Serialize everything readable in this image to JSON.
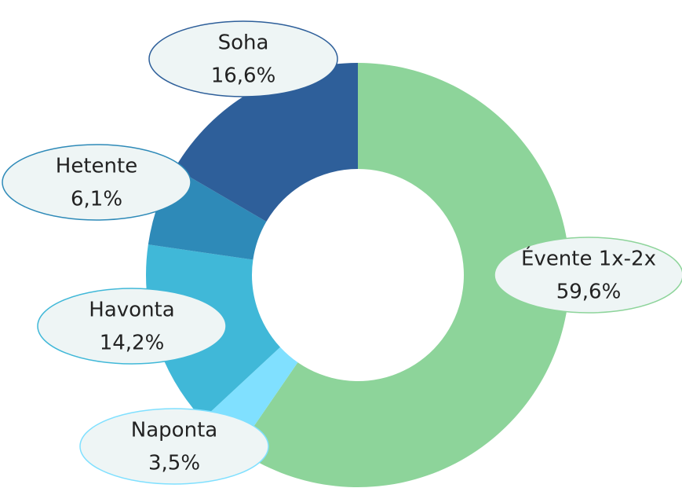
{
  "chart_data": {
    "type": "donut",
    "categories": [
      "Évente 1x-2x",
      "Naponta",
      "Havonta",
      "Hetente",
      "Soha"
    ],
    "values": [
      59.6,
      3.5,
      14.2,
      6.1,
      16.6
    ],
    "value_labels": [
      "59,6%",
      "3,5%",
      "14,2%",
      "6,1%",
      "16,6%"
    ],
    "colors": [
      "#8dd49a",
      "#80e0ff",
      "#40b8d8",
      "#2e8ab8",
      "#2e5f9a"
    ]
  }
}
